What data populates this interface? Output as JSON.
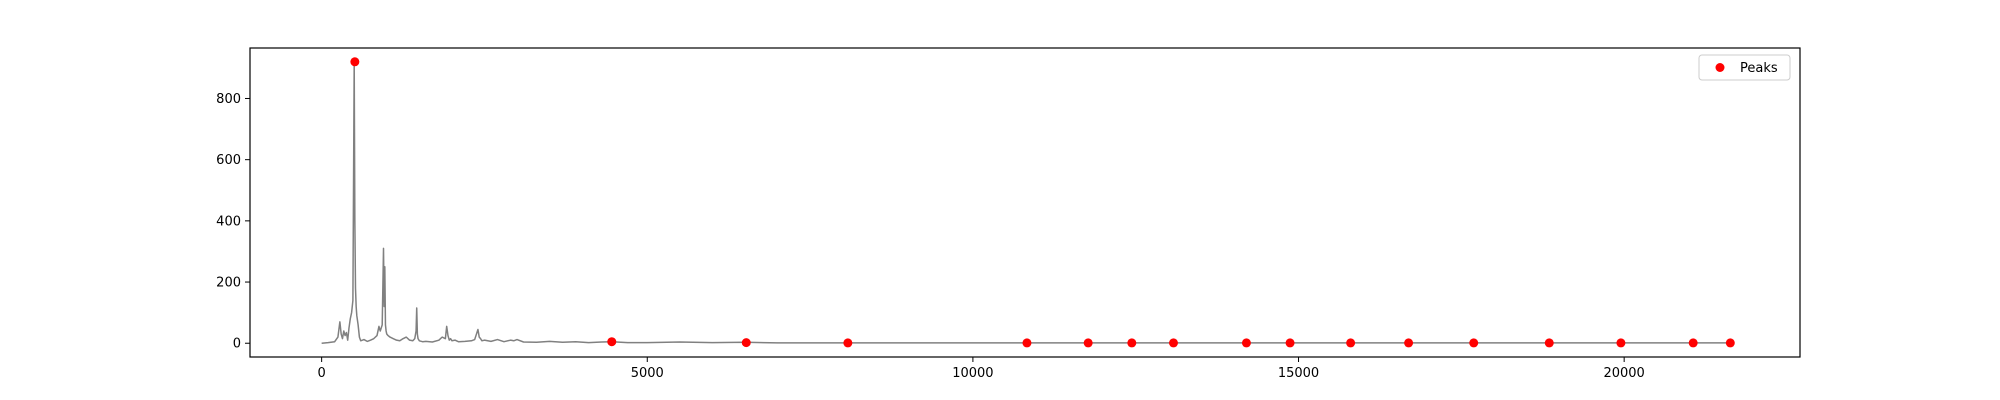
{
  "chart_data": {
    "type": "line",
    "title": "",
    "xlabel": "",
    "ylabel": "",
    "xlim": [
      -1100,
      22700
    ],
    "ylim": [
      -45,
      965
    ],
    "x_ticks": [
      0,
      5000,
      10000,
      15000,
      20000
    ],
    "x_tick_labels": [
      "0",
      "5000",
      "10000",
      "15000",
      "20000"
    ],
    "y_ticks": [
      0,
      200,
      400,
      600,
      800
    ],
    "y_tick_labels": [
      "0",
      "200",
      "400",
      "600",
      "800"
    ],
    "grid": false,
    "legend": {
      "placement": "top-right",
      "entries": [
        {
          "label": "Peaks",
          "marker": "circle",
          "color": "#ff0000"
        }
      ]
    },
    "series": [
      {
        "kind": "line",
        "color": "#808080",
        "x": [
          0,
          100,
          200,
          250,
          280,
          300,
          320,
          340,
          360,
          380,
          400,
          420,
          440,
          460,
          480,
          500,
          510,
          520,
          530,
          540,
          560,
          580,
          600,
          650,
          700,
          750,
          800,
          850,
          880,
          900,
          930,
          950,
          960,
          970,
          980,
          990,
          1000,
          1020,
          1050,
          1100,
          1150,
          1200,
          1250,
          1300,
          1350,
          1400,
          1430,
          1450,
          1460,
          1470,
          1480,
          1500,
          1550,
          1600,
          1700,
          1800,
          1850,
          1900,
          1920,
          1940,
          1960,
          1980,
          2000,
          2050,
          2100,
          2200,
          2300,
          2350,
          2400,
          2420,
          2440,
          2460,
          2500,
          2600,
          2700,
          2800,
          2900,
          2950,
          3000,
          3100,
          3300,
          3500,
          3700,
          3900,
          4100,
          4300,
          4455,
          4700,
          5000,
          5500,
          6000,
          6500,
          7000,
          8000,
          9000,
          10000,
          11000,
          12000,
          13000,
          14000,
          15000,
          16000,
          17000,
          18000,
          19000,
          20000,
          21000,
          21600
        ],
        "y": [
          0,
          2,
          5,
          20,
          70,
          30,
          15,
          40,
          25,
          35,
          10,
          50,
          80,
          100,
          140,
          920,
          400,
          180,
          120,
          90,
          60,
          20,
          8,
          12,
          6,
          10,
          15,
          25,
          55,
          40,
          60,
          310,
          120,
          250,
          60,
          40,
          30,
          25,
          20,
          15,
          10,
          8,
          15,
          20,
          10,
          8,
          15,
          40,
          115,
          30,
          15,
          8,
          5,
          6,
          4,
          10,
          20,
          15,
          55,
          25,
          10,
          15,
          8,
          10,
          5,
          6,
          8,
          12,
          45,
          20,
          15,
          8,
          10,
          6,
          12,
          5,
          10,
          8,
          12,
          4,
          3,
          6,
          3,
          5,
          2,
          4,
          5,
          2,
          2,
          4,
          2,
          3,
          1,
          1,
          1,
          1,
          1,
          1,
          1,
          1,
          1,
          1,
          1,
          1,
          1,
          1,
          1,
          1
        ]
      },
      {
        "name": "Peaks",
        "kind": "scatter",
        "color": "#ff0000",
        "x": [
          510,
          4455,
          6520,
          8080,
          10830,
          11770,
          12440,
          13080,
          14200,
          14870,
          15800,
          16690,
          17690,
          18850,
          19950,
          21060,
          21630
        ],
        "y": [
          920,
          5,
          2,
          1,
          1,
          1,
          1,
          1,
          1,
          1,
          1,
          1,
          1,
          1,
          1,
          1,
          1
        ]
      }
    ]
  }
}
